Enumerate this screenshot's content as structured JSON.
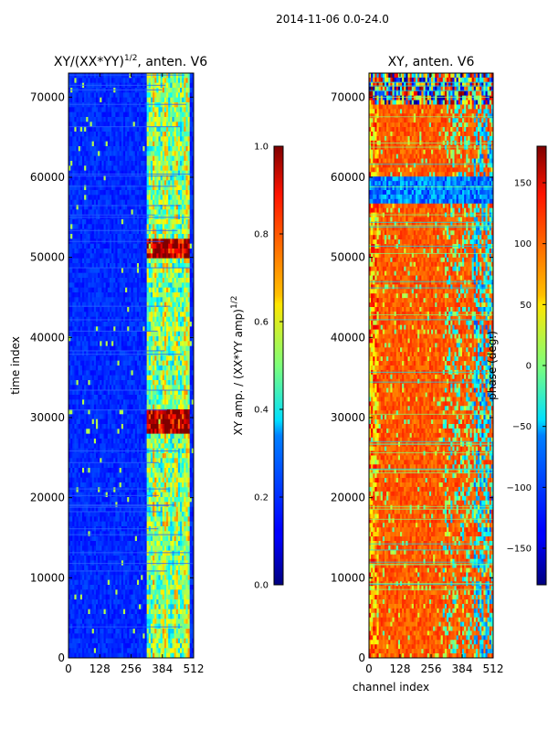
{
  "suptitle": "2014-11-06 0.0-24.0",
  "chart_data": [
    {
      "type": "heatmap",
      "title": "XY/(XX*YY)",
      "title_sup": "1/2",
      "title_suffix": ", anten. V6",
      "xlabel": "",
      "ylabel": "time index",
      "xlim": [
        0,
        512
      ],
      "ylim": [
        0,
        73000
      ],
      "xticks": [
        "0",
        "128",
        "256",
        "384",
        "512"
      ],
      "yticks": [
        "0",
        "10000",
        "20000",
        "30000",
        "40000",
        "50000",
        "60000",
        "70000"
      ],
      "xtick_values": [
        0,
        128,
        256,
        384,
        512
      ],
      "ytick_values": [
        0,
        10000,
        20000,
        30000,
        40000,
        50000,
        60000,
        70000
      ],
      "colormap": "jet",
      "bright_band_channels": [
        320,
        495
      ],
      "colorbar": {
        "label": "XY amp. / (XX*YY amp)",
        "label_sup": "1/2",
        "range": [
          0.0,
          1.0
        ],
        "ticks": [
          "0.0",
          "0.2",
          "0.4",
          "0.6",
          "0.8",
          "1.0"
        ],
        "tick_values": [
          0.0,
          0.2,
          0.4,
          0.6,
          0.8,
          1.0
        ]
      }
    },
    {
      "type": "heatmap",
      "title": "XY, anten. V6",
      "xlabel": "channel index",
      "ylabel": "",
      "xlim": [
        0,
        512
      ],
      "ylim": [
        0,
        73000
      ],
      "xticks": [
        "0",
        "128",
        "256",
        "384",
        "512"
      ],
      "yticks": [
        "0",
        "10000",
        "20000",
        "30000",
        "40000",
        "50000",
        "60000",
        "70000"
      ],
      "xtick_values": [
        0,
        128,
        256,
        384,
        512
      ],
      "ytick_values": [
        0,
        10000,
        20000,
        30000,
        40000,
        50000,
        60000,
        70000
      ],
      "colormap": "jet",
      "colorbar": {
        "label": "phase (deg.)",
        "range": [
          -180,
          180
        ],
        "ticks": [
          "−150",
          "−100",
          "−50",
          "0",
          "50",
          "100",
          "150"
        ],
        "tick_values": [
          -150,
          -100,
          -50,
          0,
          50,
          100,
          150
        ]
      }
    }
  ]
}
